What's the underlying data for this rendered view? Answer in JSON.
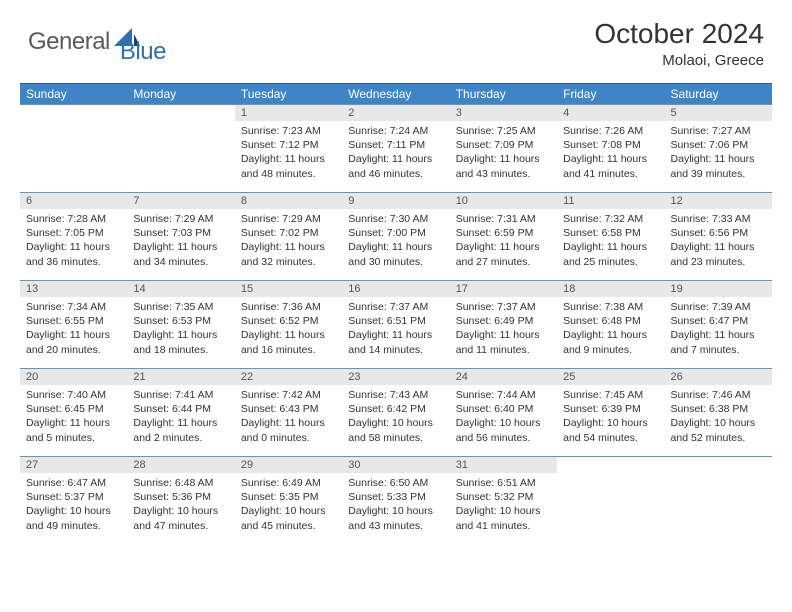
{
  "brand": {
    "part1": "General",
    "part2": "Blue"
  },
  "title": "October 2024",
  "location": "Molaoi, Greece",
  "colors": {
    "header_bg": "#3d85c6",
    "header_text": "#ffffff",
    "row_divider": "#6b91b6",
    "daynum_bg": "#e8e8e8",
    "body_text": "#333333",
    "logo_gray": "#5a5a5a",
    "logo_blue": "#2f6fb0"
  },
  "weekdays": [
    "Sunday",
    "Monday",
    "Tuesday",
    "Wednesday",
    "Thursday",
    "Friday",
    "Saturday"
  ],
  "grid": [
    [
      {
        "empty": true
      },
      {
        "empty": true
      },
      {
        "num": "1",
        "sunrise": "Sunrise: 7:23 AM",
        "sunset": "Sunset: 7:12 PM",
        "day1": "Daylight: 11 hours",
        "day2": "and 48 minutes."
      },
      {
        "num": "2",
        "sunrise": "Sunrise: 7:24 AM",
        "sunset": "Sunset: 7:11 PM",
        "day1": "Daylight: 11 hours",
        "day2": "and 46 minutes."
      },
      {
        "num": "3",
        "sunrise": "Sunrise: 7:25 AM",
        "sunset": "Sunset: 7:09 PM",
        "day1": "Daylight: 11 hours",
        "day2": "and 43 minutes."
      },
      {
        "num": "4",
        "sunrise": "Sunrise: 7:26 AM",
        "sunset": "Sunset: 7:08 PM",
        "day1": "Daylight: 11 hours",
        "day2": "and 41 minutes."
      },
      {
        "num": "5",
        "sunrise": "Sunrise: 7:27 AM",
        "sunset": "Sunset: 7:06 PM",
        "day1": "Daylight: 11 hours",
        "day2": "and 39 minutes."
      }
    ],
    [
      {
        "num": "6",
        "sunrise": "Sunrise: 7:28 AM",
        "sunset": "Sunset: 7:05 PM",
        "day1": "Daylight: 11 hours",
        "day2": "and 36 minutes."
      },
      {
        "num": "7",
        "sunrise": "Sunrise: 7:29 AM",
        "sunset": "Sunset: 7:03 PM",
        "day1": "Daylight: 11 hours",
        "day2": "and 34 minutes."
      },
      {
        "num": "8",
        "sunrise": "Sunrise: 7:29 AM",
        "sunset": "Sunset: 7:02 PM",
        "day1": "Daylight: 11 hours",
        "day2": "and 32 minutes."
      },
      {
        "num": "9",
        "sunrise": "Sunrise: 7:30 AM",
        "sunset": "Sunset: 7:00 PM",
        "day1": "Daylight: 11 hours",
        "day2": "and 30 minutes."
      },
      {
        "num": "10",
        "sunrise": "Sunrise: 7:31 AM",
        "sunset": "Sunset: 6:59 PM",
        "day1": "Daylight: 11 hours",
        "day2": "and 27 minutes."
      },
      {
        "num": "11",
        "sunrise": "Sunrise: 7:32 AM",
        "sunset": "Sunset: 6:58 PM",
        "day1": "Daylight: 11 hours",
        "day2": "and 25 minutes."
      },
      {
        "num": "12",
        "sunrise": "Sunrise: 7:33 AM",
        "sunset": "Sunset: 6:56 PM",
        "day1": "Daylight: 11 hours",
        "day2": "and 23 minutes."
      }
    ],
    [
      {
        "num": "13",
        "sunrise": "Sunrise: 7:34 AM",
        "sunset": "Sunset: 6:55 PM",
        "day1": "Daylight: 11 hours",
        "day2": "and 20 minutes."
      },
      {
        "num": "14",
        "sunrise": "Sunrise: 7:35 AM",
        "sunset": "Sunset: 6:53 PM",
        "day1": "Daylight: 11 hours",
        "day2": "and 18 minutes."
      },
      {
        "num": "15",
        "sunrise": "Sunrise: 7:36 AM",
        "sunset": "Sunset: 6:52 PM",
        "day1": "Daylight: 11 hours",
        "day2": "and 16 minutes."
      },
      {
        "num": "16",
        "sunrise": "Sunrise: 7:37 AM",
        "sunset": "Sunset: 6:51 PM",
        "day1": "Daylight: 11 hours",
        "day2": "and 14 minutes."
      },
      {
        "num": "17",
        "sunrise": "Sunrise: 7:37 AM",
        "sunset": "Sunset: 6:49 PM",
        "day1": "Daylight: 11 hours",
        "day2": "and 11 minutes."
      },
      {
        "num": "18",
        "sunrise": "Sunrise: 7:38 AM",
        "sunset": "Sunset: 6:48 PM",
        "day1": "Daylight: 11 hours",
        "day2": "and 9 minutes."
      },
      {
        "num": "19",
        "sunrise": "Sunrise: 7:39 AM",
        "sunset": "Sunset: 6:47 PM",
        "day1": "Daylight: 11 hours",
        "day2": "and 7 minutes."
      }
    ],
    [
      {
        "num": "20",
        "sunrise": "Sunrise: 7:40 AM",
        "sunset": "Sunset: 6:45 PM",
        "day1": "Daylight: 11 hours",
        "day2": "and 5 minutes."
      },
      {
        "num": "21",
        "sunrise": "Sunrise: 7:41 AM",
        "sunset": "Sunset: 6:44 PM",
        "day1": "Daylight: 11 hours",
        "day2": "and 2 minutes."
      },
      {
        "num": "22",
        "sunrise": "Sunrise: 7:42 AM",
        "sunset": "Sunset: 6:43 PM",
        "day1": "Daylight: 11 hours",
        "day2": "and 0 minutes."
      },
      {
        "num": "23",
        "sunrise": "Sunrise: 7:43 AM",
        "sunset": "Sunset: 6:42 PM",
        "day1": "Daylight: 10 hours",
        "day2": "and 58 minutes."
      },
      {
        "num": "24",
        "sunrise": "Sunrise: 7:44 AM",
        "sunset": "Sunset: 6:40 PM",
        "day1": "Daylight: 10 hours",
        "day2": "and 56 minutes."
      },
      {
        "num": "25",
        "sunrise": "Sunrise: 7:45 AM",
        "sunset": "Sunset: 6:39 PM",
        "day1": "Daylight: 10 hours",
        "day2": "and 54 minutes."
      },
      {
        "num": "26",
        "sunrise": "Sunrise: 7:46 AM",
        "sunset": "Sunset: 6:38 PM",
        "day1": "Daylight: 10 hours",
        "day2": "and 52 minutes."
      }
    ],
    [
      {
        "num": "27",
        "sunrise": "Sunrise: 6:47 AM",
        "sunset": "Sunset: 5:37 PM",
        "day1": "Daylight: 10 hours",
        "day2": "and 49 minutes."
      },
      {
        "num": "28",
        "sunrise": "Sunrise: 6:48 AM",
        "sunset": "Sunset: 5:36 PM",
        "day1": "Daylight: 10 hours",
        "day2": "and 47 minutes."
      },
      {
        "num": "29",
        "sunrise": "Sunrise: 6:49 AM",
        "sunset": "Sunset: 5:35 PM",
        "day1": "Daylight: 10 hours",
        "day2": "and 45 minutes."
      },
      {
        "num": "30",
        "sunrise": "Sunrise: 6:50 AM",
        "sunset": "Sunset: 5:33 PM",
        "day1": "Daylight: 10 hours",
        "day2": "and 43 minutes."
      },
      {
        "num": "31",
        "sunrise": "Sunrise: 6:51 AM",
        "sunset": "Sunset: 5:32 PM",
        "day1": "Daylight: 10 hours",
        "day2": "and 41 minutes."
      },
      {
        "empty": true
      },
      {
        "empty": true
      }
    ]
  ]
}
